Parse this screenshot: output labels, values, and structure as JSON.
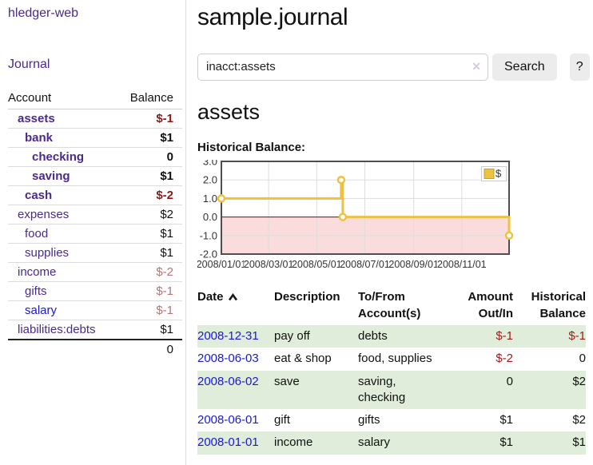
{
  "colors": {
    "purple_link": "#4a2a8a",
    "blue_link": "#1a1acc",
    "text": "#111111",
    "negative_strong": "#8f1717",
    "negative": "#9e1a1a",
    "negative_soft": "#bb7272",
    "row_highlight": "#e0edda",
    "series_gold": "#edc240",
    "series_gold_border": "#c5a02e",
    "negative_region_fill": "#fbdcdc",
    "zero_line": "#8b0000",
    "grid_line": "#dddddd",
    "chart_border": "#4f4f4f"
  },
  "sidebar": {
    "brand": "hledger-web",
    "journal_link": "Journal",
    "accounts_table": {
      "col_account": "Account",
      "col_balance": "Balance",
      "rows": [
        {
          "name": "assets",
          "balance": "$-1",
          "indent": 1,
          "bold": true,
          "name_color": "purple",
          "balance_color": "negative_strong"
        },
        {
          "name": "bank",
          "balance": "$1",
          "indent": 2,
          "bold": true,
          "name_color": "purple",
          "balance_color": "text"
        },
        {
          "name": "checking",
          "balance": "0",
          "indent": 3,
          "bold": true,
          "name_color": "purple",
          "balance_color": "text"
        },
        {
          "name": "saving",
          "balance": "$1",
          "indent": 3,
          "bold": true,
          "name_color": "purple",
          "balance_color": "text"
        },
        {
          "name": "cash",
          "balance": "$-2",
          "indent": 2,
          "bold": true,
          "name_color": "purple",
          "balance_color": "negative_strong"
        },
        {
          "name": "expenses",
          "balance": "$2",
          "indent": 1,
          "bold": false,
          "name_color": "purple",
          "balance_color": "text"
        },
        {
          "name": "food",
          "balance": "$1",
          "indent": 2,
          "bold": false,
          "name_color": "purple",
          "balance_color": "text"
        },
        {
          "name": "supplies",
          "balance": "$1",
          "indent": 2,
          "bold": false,
          "name_color": "purple",
          "balance_color": "text"
        },
        {
          "name": "income",
          "balance": "$-2",
          "indent": 1,
          "bold": false,
          "name_color": "purple",
          "balance_color": "negative_soft"
        },
        {
          "name": "gifts",
          "balance": "$-1",
          "indent": 2,
          "bold": false,
          "name_color": "purple",
          "balance_color": "negative_soft"
        },
        {
          "name": "salary",
          "balance": "$-1",
          "indent": 2,
          "bold": false,
          "name_color": "blue",
          "balance_color": "negative_soft"
        },
        {
          "name": "liabilities:debts",
          "balance": "$1",
          "indent": 1,
          "bold": false,
          "name_color": "purple",
          "balance_color": "text"
        }
      ],
      "total": "0"
    }
  },
  "main": {
    "title": "sample.journal",
    "search": {
      "value": "inacct:assets",
      "clear_icon": "✕",
      "search_button": "Search",
      "help_button": "?"
    },
    "account_heading": "assets",
    "chart_label": "Historical Balance:",
    "transactions": {
      "headers": {
        "date": "Date",
        "description": "Description",
        "accounts": "To/From Account(s)",
        "amount": "Amount Out/In",
        "balance": "Historical Balance"
      },
      "rows": [
        {
          "date": "2008-12-31",
          "description": "pay off",
          "accounts": "debts",
          "amount": "$-1",
          "amount_negative": true,
          "balance": "$-1",
          "balance_negative": true
        },
        {
          "date": "2008-06-03",
          "description": "eat & shop",
          "accounts": "food, supplies",
          "amount": "$-2",
          "amount_negative": true,
          "balance": "0",
          "balance_negative": false
        },
        {
          "date": "2008-06-02",
          "description": "save",
          "accounts": "saving, checking",
          "amount": "0",
          "amount_negative": false,
          "balance": "$2",
          "balance_negative": false
        },
        {
          "date": "2008-06-01",
          "description": "gift",
          "accounts": "gifts",
          "amount": "$1",
          "amount_negative": false,
          "balance": "$2",
          "balance_negative": false
        },
        {
          "date": "2008-01-01",
          "description": "income",
          "accounts": "salary",
          "amount": "$1",
          "amount_negative": false,
          "balance": "$1",
          "balance_negative": false
        }
      ]
    }
  },
  "chart_data": {
    "type": "line",
    "step": true,
    "title": "Historical Balance:",
    "series": [
      {
        "name": "$",
        "color": "#edc240",
        "points": [
          {
            "date": "2008-01-01",
            "value": 1
          },
          {
            "date": "2008-06-01",
            "value": 2
          },
          {
            "date": "2008-06-03",
            "value": 0
          },
          {
            "date": "2008-12-31",
            "value": -1
          }
        ]
      }
    ],
    "x_ticks": [
      "2008/01/01",
      "2008/03/01",
      "2008/05/01",
      "2008/07/01",
      "2008/09/01",
      "2008/11/01"
    ],
    "y_ticks": [
      "3.0",
      "2.0",
      "1.0",
      "0.0",
      "-1.0",
      "-2.0"
    ],
    "xlim": [
      "2008-01-01",
      "2008-12-31"
    ],
    "ylim": [
      -2,
      3
    ],
    "grid": true,
    "negative_region_shaded": true,
    "legend": {
      "label": "$",
      "position": "top-right"
    }
  }
}
